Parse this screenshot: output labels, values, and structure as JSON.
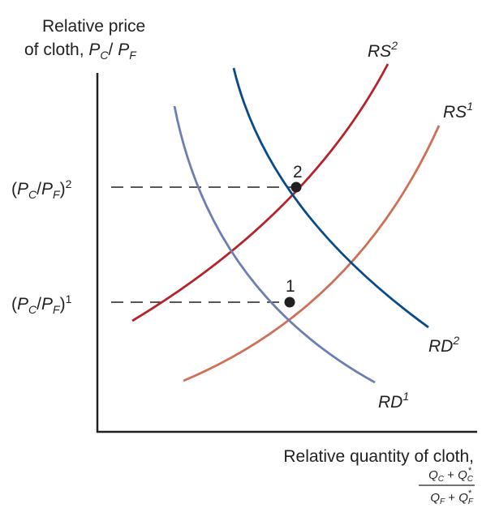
{
  "y_axis": {
    "line1": "Relative price",
    "line2_prefix": "of cloth, ",
    "P": "P",
    "C": "C",
    "slash": "/ ",
    "F": "F"
  },
  "x_axis": {
    "label": "Relative quantity of cloth,",
    "frac_num": {
      "Q": "Q",
      "C": "C",
      "plus": " + ",
      "star": "*"
    },
    "frac_den": {
      "Q": "Q",
      "F": "F",
      "plus": " + ",
      "star": "*"
    }
  },
  "price_levels": [
    {
      "open": "(",
      "P1": "P",
      "s1": "C",
      "mid": "/",
      "P2": "P",
      "s2": "F",
      "close": ")",
      "sup": "2"
    },
    {
      "open": "(",
      "P1": "P",
      "s1": "C",
      "mid": "/",
      "P2": "P",
      "s2": "F",
      "close": ")",
      "sup": "1"
    }
  ],
  "curves": [
    {
      "base": "RS",
      "sup": "2",
      "color": "#b5232b"
    },
    {
      "base": "RS",
      "sup": "1",
      "color": "#cd7057"
    },
    {
      "base": "RD",
      "sup": "2",
      "color": "#0a4a8a"
    },
    {
      "base": "RD",
      "sup": "1",
      "color": "#6b7fb3"
    }
  ],
  "points": [
    {
      "label": "2"
    },
    {
      "label": "1"
    }
  ]
}
